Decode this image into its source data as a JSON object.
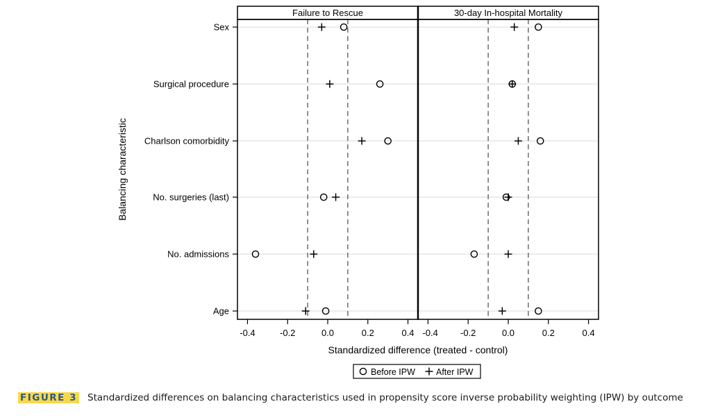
{
  "chart_data": {
    "type": "scatter",
    "ylabel": "Balancing characteristic",
    "xlabel": "Standardized difference (treated - control)",
    "categories": [
      "Sex",
      "Surgical procedure",
      "Charlson comorbidity",
      "No. surgeries (last)",
      "No. admissions",
      "Age"
    ],
    "xlim": [
      -0.45,
      0.45
    ],
    "xticks": [
      -0.4,
      -0.2,
      0.0,
      0.2,
      0.4
    ],
    "xtick_labels": [
      "-0.4",
      "-0.2",
      "0.0",
      "0.2",
      "0.4"
    ],
    "reference_lines": [
      -0.1,
      0.1
    ],
    "legend": {
      "position": "bottom-center",
      "entries": [
        {
          "label": "Before IPW",
          "marker": "circle"
        },
        {
          "label": "After IPW",
          "marker": "plus"
        }
      ]
    },
    "panels": [
      {
        "title": "Failure to Rescue",
        "series": [
          {
            "name": "Before IPW",
            "values": [
              0.08,
              0.26,
              0.3,
              -0.02,
              -0.36,
              -0.01
            ]
          },
          {
            "name": "After IPW",
            "values": [
              -0.03,
              0.01,
              0.17,
              0.04,
              -0.07,
              -0.11
            ]
          }
        ]
      },
      {
        "title": "30-day In-hospital Mortality",
        "series": [
          {
            "name": "Before IPW",
            "values": [
              0.15,
              0.02,
              0.16,
              -0.01,
              -0.17,
              0.15
            ]
          },
          {
            "name": "After IPW",
            "values": [
              0.03,
              0.02,
              0.05,
              0.0,
              0.0,
              -0.03
            ]
          }
        ]
      }
    ]
  },
  "caption": {
    "label": "FIGURE 3",
    "text": "Standardized differences on balancing characteristics used in propensity score inverse probability weighting (IPW) by outcome"
  }
}
